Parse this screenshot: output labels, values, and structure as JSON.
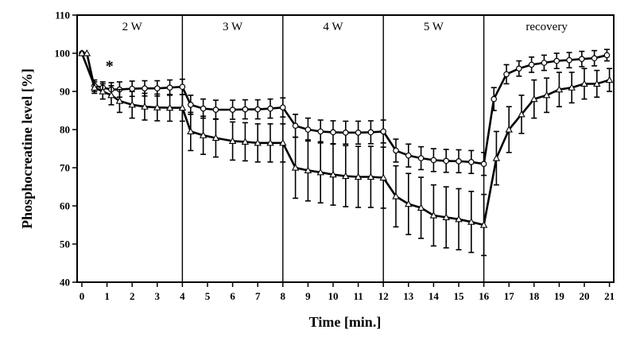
{
  "chart_data": {
    "type": "line",
    "title": "",
    "xlabel": "Time [min.]",
    "ylabel": "Phosphocreatine level [%]",
    "xlim": [
      0,
      21
    ],
    "ylim": [
      40,
      110
    ],
    "xticks": [
      0,
      1,
      2,
      3,
      4,
      5,
      6,
      7,
      8,
      9,
      10,
      11,
      12,
      13,
      14,
      15,
      16,
      17,
      18,
      19,
      20,
      21
    ],
    "yticks": [
      40,
      50,
      60,
      70,
      80,
      90,
      100,
      110
    ],
    "grid": false,
    "legend": "none",
    "phase_dividers": [
      4,
      8,
      12,
      16
    ],
    "phases": [
      {
        "label": "2 W",
        "x": 2
      },
      {
        "label": "3 W",
        "x": 6
      },
      {
        "label": "4 W",
        "x": 10
      },
      {
        "label": "5 W",
        "x": 14
      },
      {
        "label": "recovery",
        "x": 18.5
      }
    ],
    "annotations": [
      {
        "text": "*",
        "x": 1.1,
        "y": 97
      }
    ],
    "series": [
      {
        "marker": "circle",
        "x": [
          0,
          0.5,
          0.83,
          1.17,
          1.5,
          2,
          2.5,
          3,
          3.5,
          4,
          4.33,
          4.83,
          5.33,
          6,
          6.5,
          7,
          7.5,
          8,
          8.5,
          9,
          9.5,
          10,
          10.5,
          11,
          11.5,
          12,
          12.5,
          13,
          13.5,
          14,
          14.5,
          15,
          15.5,
          16,
          16.4,
          16.9,
          17.4,
          17.9,
          18.4,
          18.9,
          19.4,
          19.9,
          20.4,
          20.9
        ],
        "y": [
          100,
          91.5,
          91,
          90.5,
          90.5,
          90.7,
          90.8,
          90.8,
          91,
          91.2,
          86.5,
          85.5,
          85.2,
          85.2,
          85.3,
          85.3,
          85.5,
          85.8,
          81,
          80,
          79.5,
          79.3,
          79.2,
          79.2,
          79.3,
          79.5,
          74.5,
          73.2,
          72.5,
          72,
          71.8,
          71.7,
          71.5,
          71,
          88,
          94.5,
          96,
          97,
          97.5,
          98,
          98.2,
          98.5,
          98.7,
          99.5
        ],
        "err": [
          0,
          1.5,
          1.5,
          1.8,
          2,
          2,
          2,
          2,
          2,
          2,
          2.5,
          2.5,
          2.5,
          2.5,
          2.5,
          2.5,
          2.5,
          2.5,
          3,
          3,
          3,
          3,
          3,
          3,
          3,
          3,
          3,
          3,
          3,
          3,
          3,
          3,
          3,
          3,
          3,
          2.5,
          2,
          2,
          2,
          2,
          2,
          2,
          2,
          1.5
        ]
      },
      {
        "marker": "triangle",
        "x": [
          0,
          0.2,
          0.5,
          0.83,
          1.17,
          1.5,
          2,
          2.5,
          3,
          3.5,
          4,
          4.33,
          4.83,
          5.33,
          6,
          6.5,
          7,
          7.5,
          8,
          8.5,
          9,
          9.5,
          10,
          10.5,
          11,
          11.5,
          12,
          12.5,
          13,
          13.5,
          14,
          14.5,
          15,
          15.5,
          16,
          16.5,
          17,
          17.5,
          18,
          18.5,
          19,
          19.5,
          20,
          20.5,
          21
        ],
        "y": [
          100,
          100,
          91,
          90,
          89,
          87.5,
          86.5,
          86,
          85.8,
          85.7,
          85.7,
          79.5,
          78.5,
          77.8,
          77,
          76.8,
          76.5,
          76.5,
          76.5,
          70,
          69.3,
          68.8,
          68.2,
          67.8,
          67.6,
          67.6,
          67.4,
          62.5,
          60.5,
          59.5,
          57.5,
          57,
          56.5,
          55.8,
          55,
          72.5,
          80,
          84,
          88,
          89,
          90.5,
          91,
          92,
          92,
          93
        ],
        "err": [
          0,
          0,
          1.5,
          2,
          2.5,
          3,
          3.5,
          3.5,
          3.5,
          3.5,
          3.5,
          5,
          5,
          5,
          5,
          5,
          5,
          5,
          5,
          8,
          8,
          8,
          8,
          8,
          8,
          8,
          8,
          8,
          8,
          8,
          8,
          8,
          8,
          8,
          8,
          7,
          6,
          5,
          5,
          4.5,
          4.5,
          4,
          4,
          3.5,
          3
        ]
      }
    ]
  }
}
